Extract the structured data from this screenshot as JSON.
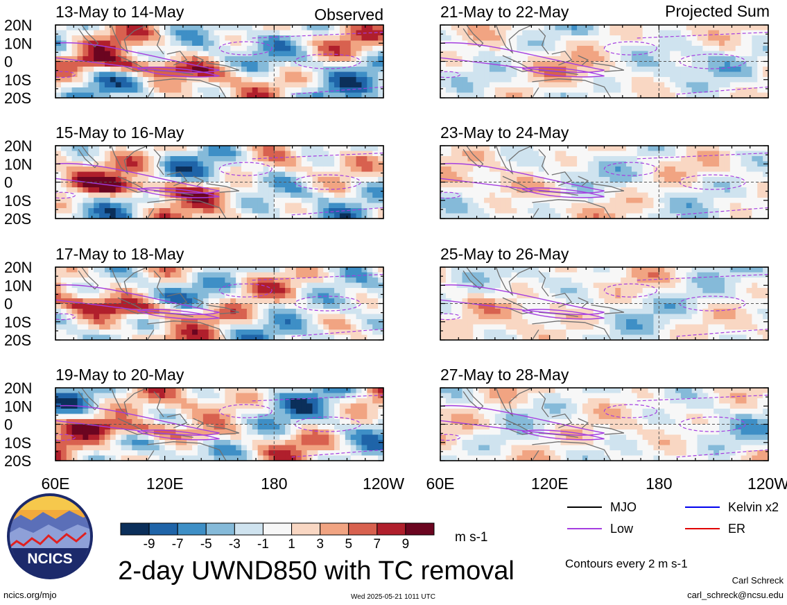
{
  "column_labels": {
    "observed": "Observed",
    "projected": "Projected Sum"
  },
  "panels": [
    {
      "title": "13-May to 14-May",
      "seed": 3
    },
    {
      "title": "15-May to 16-May",
      "seed": 7
    },
    {
      "title": "17-May to 18-May",
      "seed": 11
    },
    {
      "title": "19-May to 20-May",
      "seed": 17
    },
    {
      "title": "21-May to 22-May",
      "seed": 23
    },
    {
      "title": "23-May to 24-May",
      "seed": 29
    },
    {
      "title": "25-May to 26-May",
      "seed": 31
    },
    {
      "title": "27-May to 28-May",
      "seed": 37
    }
  ],
  "axes": {
    "y_ticks": [
      "20N",
      "10N",
      "0",
      "10S",
      "20S"
    ],
    "x_ticks": [
      "60E",
      "120E",
      "180",
      "120W"
    ]
  },
  "colorbar": {
    "levels": [
      "-9",
      "-7",
      "-5",
      "-3",
      "-1",
      "1",
      "3",
      "5",
      "7",
      "9"
    ],
    "colors": [
      "#0b2f5a",
      "#1f64a8",
      "#3e8fc6",
      "#85bad9",
      "#cfe3ef",
      "#f7f7f7",
      "#f9d7c3",
      "#f1a482",
      "#d8614f",
      "#b01f2c",
      "#6b0520"
    ],
    "units": "m s-1"
  },
  "title": "2-day UWND850 with TC removal",
  "legend": {
    "items": [
      {
        "label": "MJO",
        "color": "#000000"
      },
      {
        "label": "Kelvin x2",
        "color": "#0000ee"
      },
      {
        "label": "Low",
        "color": "#a43de0"
      },
      {
        "label": "ER",
        "color": "#e00000"
      }
    ],
    "contour_note": "Contours every 2 m s-1"
  },
  "credits": {
    "logo_text": "NCICS",
    "url": "ncics.org/mjo",
    "timestamp": "Wed 2025-05-21 1011 UTC",
    "author": "Carl Schreck",
    "email": "carl_schreck@ncsu.edu"
  },
  "chart_data": {
    "type": "heatmap",
    "variable": "2-day UWND850 with TC removal",
    "units": "m s-1",
    "color_levels": [
      -9,
      -7,
      -5,
      -3,
      -1,
      1,
      3,
      5,
      7,
      9
    ],
    "xlim": [
      "60E",
      "120W"
    ],
    "ylim": [
      "20S",
      "20N"
    ],
    "contour_interval": "Contours every 2 m s-1",
    "panels": [
      "13-May to 14-May",
      "15-May to 16-May",
      "17-May to 18-May",
      "19-May to 20-May",
      "21-May to 22-May",
      "23-May to 24-May",
      "25-May to 26-May",
      "27-May to 28-May"
    ]
  }
}
